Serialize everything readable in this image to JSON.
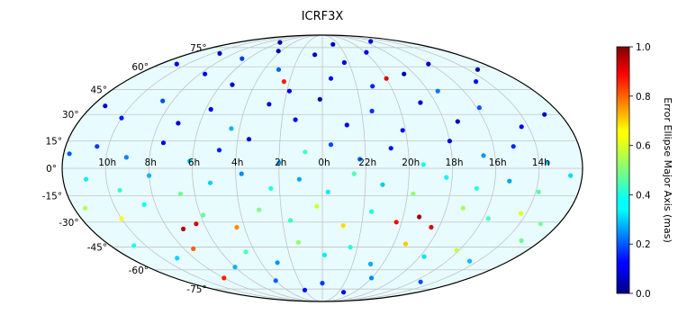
{
  "chart_data": {
    "type": "scatter",
    "projection": "mollweide",
    "title": "ICRF3X",
    "grid": true,
    "lat_ticks": [
      {
        "value": 75,
        "label": "75°"
      },
      {
        "value": 60,
        "label": "60°"
      },
      {
        "value": 45,
        "label": "45°"
      },
      {
        "value": 30,
        "label": "30°"
      },
      {
        "value": 15,
        "label": "15°"
      },
      {
        "value": 0,
        "label": "0°"
      },
      {
        "value": -15,
        "label": "-15°"
      },
      {
        "value": -30,
        "label": "-30°"
      },
      {
        "value": -45,
        "label": "-45°"
      },
      {
        "value": -60,
        "label": "-60°"
      },
      {
        "value": -75,
        "label": "-75°"
      }
    ],
    "lon_ticks": [
      {
        "value": 150,
        "label": "10h"
      },
      {
        "value": 120,
        "label": "8h"
      },
      {
        "value": 90,
        "label": "6h"
      },
      {
        "value": 60,
        "label": "4h"
      },
      {
        "value": 30,
        "label": "2h"
      },
      {
        "value": 0,
        "label": "0h"
      },
      {
        "value": -30,
        "label": "22h"
      },
      {
        "value": -60,
        "label": "20h"
      },
      {
        "value": -90,
        "label": "18h"
      },
      {
        "value": -120,
        "label": "16h"
      },
      {
        "value": -150,
        "label": "14h"
      }
    ],
    "colorbar": {
      "label": "Error Ellipse Major Axis (mas)",
      "colormap": "jet",
      "min": 0.0,
      "max": 1.0,
      "ticks": [
        {
          "value": 0.0,
          "label": "0.0"
        },
        {
          "value": 0.2,
          "label": "0.2"
        },
        {
          "value": 0.4,
          "label": "0.4"
        },
        {
          "value": 0.6,
          "label": "0.6"
        },
        {
          "value": 0.8,
          "label": "0.8"
        },
        {
          "value": 1.0,
          "label": "1.0"
        }
      ]
    },
    "colors": {
      "map_fill": "#e8fbfe",
      "grid_line": "#bcbcbc",
      "outline": "#000000"
    },
    "points": [
      {
        "lon": 162,
        "lat": 62,
        "value": 0.1
      },
      {
        "lon": 140,
        "lat": 70,
        "value": 0.06
      },
      {
        "lon": 115,
        "lat": 55,
        "value": 0.12
      },
      {
        "lon": 98,
        "lat": 66,
        "value": 0.18
      },
      {
        "lon": 80,
        "lat": 48,
        "value": 0.08
      },
      {
        "lon": 64,
        "lat": 72,
        "value": 0.05
      },
      {
        "lon": 45,
        "lat": 58,
        "value": 0.22
      },
      {
        "lon": 28,
        "lat": 44,
        "value": 0.1
      },
      {
        "lon": 10,
        "lat": 69,
        "value": 0.07
      },
      {
        "lon": -8,
        "lat": 52,
        "value": 0.13
      },
      {
        "lon": -25,
        "lat": 63,
        "value": 0.09
      },
      {
        "lon": -44,
        "lat": 47,
        "value": 0.16
      },
      {
        "lon": -62,
        "lat": 71,
        "value": 0.11
      },
      {
        "lon": -80,
        "lat": 55,
        "value": 0.06
      },
      {
        "lon": -98,
        "lat": 44,
        "value": 0.24
      },
      {
        "lon": -118,
        "lat": 62,
        "value": 0.08
      },
      {
        "lon": -140,
        "lat": 50,
        "value": 0.14
      },
      {
        "lon": -160,
        "lat": 58,
        "value": 0.05
      },
      {
        "lon": 170,
        "lat": 35,
        "value": 0.09
      },
      {
        "lon": 150,
        "lat": 28,
        "value": 0.15
      },
      {
        "lon": 128,
        "lat": 38,
        "value": 0.2
      },
      {
        "lon": 106,
        "lat": 25,
        "value": 0.07
      },
      {
        "lon": 86,
        "lat": 33,
        "value": 0.11
      },
      {
        "lon": 66,
        "lat": 22,
        "value": 0.3
      },
      {
        "lon": 42,
        "lat": 36,
        "value": 0.08
      },
      {
        "lon": 20,
        "lat": 27,
        "value": 0.12
      },
      {
        "lon": 2,
        "lat": 39,
        "value": 0.06
      },
      {
        "lon": -18,
        "lat": 24,
        "value": 0.1
      },
      {
        "lon": -38,
        "lat": 32,
        "value": 0.17
      },
      {
        "lon": -58,
        "lat": 21,
        "value": 0.13
      },
      {
        "lon": -78,
        "lat": 37,
        "value": 0.09
      },
      {
        "lon": -100,
        "lat": 26,
        "value": 0.06
      },
      {
        "lon": -122,
        "lat": 34,
        "value": 0.21
      },
      {
        "lon": -145,
        "lat": 23,
        "value": 0.12
      },
      {
        "lon": -168,
        "lat": 30,
        "value": 0.08
      },
      {
        "lon": -60,
        "lat": 52,
        "value": 0.9
      },
      {
        "lon": 35,
        "lat": 50,
        "value": 0.85
      },
      {
        "lon": 158,
        "lat": 12,
        "value": 0.18
      },
      {
        "lon": 136,
        "lat": 6,
        "value": 0.25
      },
      {
        "lon": 112,
        "lat": 14,
        "value": 0.12
      },
      {
        "lon": 92,
        "lat": 4,
        "value": 0.34
      },
      {
        "lon": 72,
        "lat": 10,
        "value": 0.15
      },
      {
        "lon": 52,
        "lat": 16,
        "value": 0.09
      },
      {
        "lon": 30,
        "lat": 3,
        "value": 0.28
      },
      {
        "lon": 12,
        "lat": 9,
        "value": 0.44
      },
      {
        "lon": -6,
        "lat": 13,
        "value": 0.19
      },
      {
        "lon": -26,
        "lat": 5,
        "value": 0.23
      },
      {
        "lon": -48,
        "lat": 11,
        "value": 0.14
      },
      {
        "lon": -70,
        "lat": 2,
        "value": 0.38
      },
      {
        "lon": -90,
        "lat": 15,
        "value": 0.1
      },
      {
        "lon": -112,
        "lat": 7,
        "value": 0.27
      },
      {
        "lon": -134,
        "lat": 12,
        "value": 0.16
      },
      {
        "lon": -156,
        "lat": 3,
        "value": 0.31
      },
      {
        "lon": 176,
        "lat": 8,
        "value": 0.21
      },
      {
        "lon": 164,
        "lat": -6,
        "value": 0.36
      },
      {
        "lon": 142,
        "lat": -12,
        "value": 0.42
      },
      {
        "lon": 120,
        "lat": -4,
        "value": 0.3
      },
      {
        "lon": 100,
        "lat": -14,
        "value": 0.48
      },
      {
        "lon": 78,
        "lat": -8,
        "value": 0.33
      },
      {
        "lon": 56,
        "lat": -3,
        "value": 0.26
      },
      {
        "lon": 36,
        "lat": -11,
        "value": 0.4
      },
      {
        "lon": 16,
        "lat": -6,
        "value": 0.29
      },
      {
        "lon": -4,
        "lat": -13,
        "value": 0.35
      },
      {
        "lon": -22,
        "lat": -3,
        "value": 0.45
      },
      {
        "lon": -42,
        "lat": -9,
        "value": 0.32
      },
      {
        "lon": -64,
        "lat": -14,
        "value": 0.52
      },
      {
        "lon": -86,
        "lat": -5,
        "value": 0.37
      },
      {
        "lon": -108,
        "lat": -11,
        "value": 0.41
      },
      {
        "lon": -130,
        "lat": -7,
        "value": 0.28
      },
      {
        "lon": -152,
        "lat": -13,
        "value": 0.46
      },
      {
        "lon": -172,
        "lat": -4,
        "value": 0.34
      },
      {
        "lon": 172,
        "lat": -22,
        "value": 0.55
      },
      {
        "lon": 150,
        "lat": -28,
        "value": 0.62
      },
      {
        "lon": 128,
        "lat": -20,
        "value": 0.38
      },
      {
        "lon": 108,
        "lat": -34,
        "value": 0.95
      },
      {
        "lon": 96,
        "lat": -31,
        "value": 0.92
      },
      {
        "lon": 88,
        "lat": -26,
        "value": 0.47
      },
      {
        "lon": 66,
        "lat": -33,
        "value": 0.74
      },
      {
        "lon": 46,
        "lat": -23,
        "value": 0.5
      },
      {
        "lon": 24,
        "lat": -29,
        "value": 0.43
      },
      {
        "lon": 4,
        "lat": -21,
        "value": 0.58
      },
      {
        "lon": -16,
        "lat": -32,
        "value": 0.66
      },
      {
        "lon": -36,
        "lat": -24,
        "value": 0.39
      },
      {
        "lon": -56,
        "lat": -30,
        "value": 0.88
      },
      {
        "lon": -72,
        "lat": -27,
        "value": 0.97
      },
      {
        "lon": -84,
        "lat": -33,
        "value": 0.91
      },
      {
        "lon": -102,
        "lat": -22,
        "value": 0.54
      },
      {
        "lon": -124,
        "lat": -28,
        "value": 0.44
      },
      {
        "lon": -146,
        "lat": -25,
        "value": 0.6
      },
      {
        "lon": -166,
        "lat": -31,
        "value": 0.49
      },
      {
        "lon": 160,
        "lat": -44,
        "value": 0.4
      },
      {
        "lon": 136,
        "lat": -52,
        "value": 0.33
      },
      {
        "lon": 112,
        "lat": -46,
        "value": 0.78
      },
      {
        "lon": 90,
        "lat": -58,
        "value": 0.3
      },
      {
        "lon": 68,
        "lat": -48,
        "value": 0.45
      },
      {
        "lon": 44,
        "lat": -55,
        "value": 0.27
      },
      {
        "lon": 20,
        "lat": -42,
        "value": 0.52
      },
      {
        "lon": -2,
        "lat": -50,
        "value": 0.36
      },
      {
        "lon": -24,
        "lat": -45,
        "value": 0.41
      },
      {
        "lon": -48,
        "lat": -56,
        "value": 0.29
      },
      {
        "lon": -70,
        "lat": -43,
        "value": 0.68
      },
      {
        "lon": -94,
        "lat": -51,
        "value": 0.35
      },
      {
        "lon": -118,
        "lat": -47,
        "value": 0.57
      },
      {
        "lon": -142,
        "lat": -54,
        "value": 0.31
      },
      {
        "lon": -164,
        "lat": -41,
        "value": 0.48
      },
      {
        "lon": 120,
        "lat": -66,
        "value": 0.85
      },
      {
        "lon": 60,
        "lat": -68,
        "value": 0.22
      },
      {
        "lon": 0,
        "lat": -70,
        "value": 0.18
      },
      {
        "lon": -60,
        "lat": -66,
        "value": 0.26
      },
      {
        "lon": -130,
        "lat": -69,
        "value": 0.2
      },
      {
        "lon": 30,
        "lat": -76,
        "value": 0.14
      },
      {
        "lon": -40,
        "lat": -78,
        "value": 0.12
      },
      {
        "lon": 90,
        "lat": 80,
        "value": 0.04
      },
      {
        "lon": -20,
        "lat": 78,
        "value": 0.06
      },
      {
        "lon": -110,
        "lat": 81,
        "value": 0.08
      }
    ]
  }
}
